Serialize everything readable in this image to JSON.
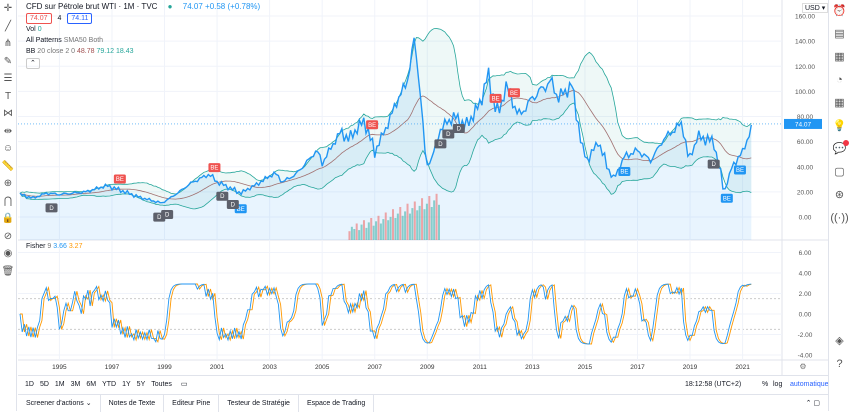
{
  "header": {
    "symbol": "CFD sur Pétrole brut WTI · 1M · TVC",
    "last": "74.07",
    "change": "+0.58 (+0.78%)",
    "sell": "74.07",
    "spread": "4",
    "buy": "74.11"
  },
  "indicators": {
    "vol_label": "Vol",
    "vol_value": "0",
    "patterns_label": "All Patterns",
    "patterns_params": "SMA50 Both",
    "bb_label": "BB",
    "bb_params": "20 close 2 0",
    "bb_basis": "48.78",
    "bb_upper": "79.12",
    "bb_lower": "18.43",
    "fisher_label": "Fisher",
    "fisher_params": "9",
    "fisher_value": "3.66",
    "fisher_trigger": "3.27",
    "collapse": "⌃"
  },
  "price_axis": {
    "currency": "USD ▾",
    "current": "74.07"
  },
  "toolbar": {
    "ranges": [
      "1D",
      "5D",
      "1M",
      "3M",
      "6M",
      "YTD",
      "1Y",
      "5Y",
      "Toutes"
    ],
    "time": "18:12:58 (UTC+2)",
    "percent": "%",
    "log": "log",
    "auto": "automatique"
  },
  "tabs": [
    "Screener d'actions ⌄",
    "Notes de Texte",
    "Editeur Pine",
    "Testeur de Stratégie",
    "Espace de Trading"
  ],
  "colors": {
    "price": "#2196f3",
    "bb_basis": "#a07070",
    "bb_band": "#26a69a",
    "fisher": "#2196f3",
    "trigger": "#ff9800",
    "bear": "#ef5350",
    "bull": "#2196f3",
    "div": "#5d606b"
  },
  "chart_data": [
    {
      "type": "line",
      "title": "CFD sur Pétrole brut WTI",
      "yticks": [
        0,
        20,
        40,
        60,
        80,
        100,
        120,
        140,
        160
      ],
      "ylim": [
        -8,
        172
      ],
      "xticks": [
        1995,
        1997,
        1999,
        2001,
        2003,
        2005,
        2007,
        2009,
        2011,
        2013,
        2015,
        2017,
        2019,
        2021
      ],
      "xlim": [
        1993.5,
        2022.5
      ],
      "x": [
        1993.5,
        1994,
        1994.5,
        1995,
        1996,
        1996.8,
        1997.5,
        1998,
        1998.9,
        1999.5,
        2000,
        2000.7,
        2001,
        2001.9,
        2002.5,
        2003.2,
        2003.5,
        2004,
        2004.8,
        2005,
        2005.7,
        2006,
        2006.6,
        2007,
        2007.5,
        2007.9,
        2008.2,
        2008.5,
        2008.7,
        2008.95,
        2009.2,
        2009.5,
        2010,
        2010.5,
        2011,
        2011.3,
        2011.7,
        2012,
        2012.5,
        2013,
        2013.7,
        2014,
        2014.5,
        2014.9,
        2015.1,
        2015.5,
        2015.9,
        2016.1,
        2016.5,
        2017,
        2017.5,
        2018,
        2018.7,
        2018.95,
        2019.3,
        2019.9,
        2020.3,
        2020.6,
        2021,
        2021.4
      ],
      "y": [
        18,
        15,
        19,
        18,
        20,
        25,
        20,
        16,
        11,
        19,
        27,
        34,
        28,
        19,
        26,
        35,
        28,
        34,
        53,
        43,
        68,
        62,
        77,
        52,
        74,
        95,
        105,
        140,
        110,
        40,
        48,
        70,
        80,
        73,
        90,
        113,
        80,
        105,
        80,
        95,
        108,
        95,
        105,
        55,
        45,
        60,
        38,
        30,
        48,
        53,
        45,
        62,
        75,
        45,
        64,
        60,
        20,
        40,
        52,
        74
      ],
      "volume": {
        "x_start": 2006,
        "x_end": 2009.5,
        "values": [
          8,
          12,
          10,
          15,
          9,
          14,
          18,
          11,
          16,
          20,
          13,
          17,
          22,
          15,
          19,
          25,
          18,
          21,
          28,
          20,
          24,
          30,
          22,
          26,
          33,
          24,
          29,
          35,
          27,
          31,
          38,
          28,
          33,
          40,
          30,
          36,
          42,
          32
        ]
      },
      "bear_labels": [
        {
          "x": 1997.3,
          "text": "BE"
        },
        {
          "x": 2000.9,
          "text": "BE"
        },
        {
          "x": 2006.9,
          "text": "BE"
        },
        {
          "x": 2011.6,
          "text": "BE"
        },
        {
          "x": 2012.3,
          "text": "BE"
        }
      ],
      "bull_labels": [
        {
          "x": 2001.9,
          "text": "BE"
        },
        {
          "x": 2016.5,
          "text": "BE"
        },
        {
          "x": 2020.4,
          "text": "BE"
        },
        {
          "x": 2020.9,
          "text": "BE"
        }
      ],
      "div_labels": [
        {
          "x": 1994.7,
          "text": "D"
        },
        {
          "x": 1998.8,
          "text": "D"
        },
        {
          "x": 1999.1,
          "text": "D"
        },
        {
          "x": 2001.2,
          "text": "D"
        },
        {
          "x": 2001.6,
          "text": "D"
        },
        {
          "x": 2009.5,
          "text": "D"
        },
        {
          "x": 2009.8,
          "text": "D"
        },
        {
          "x": 2010.2,
          "text": "D"
        },
        {
          "x": 2019.9,
          "text": "D"
        }
      ]
    },
    {
      "type": "line",
      "title": "Fisher 9",
      "yticks": [
        -4,
        -2,
        0,
        2,
        4,
        6
      ],
      "ylim": [
        -4.2,
        6.4
      ]
    }
  ]
}
